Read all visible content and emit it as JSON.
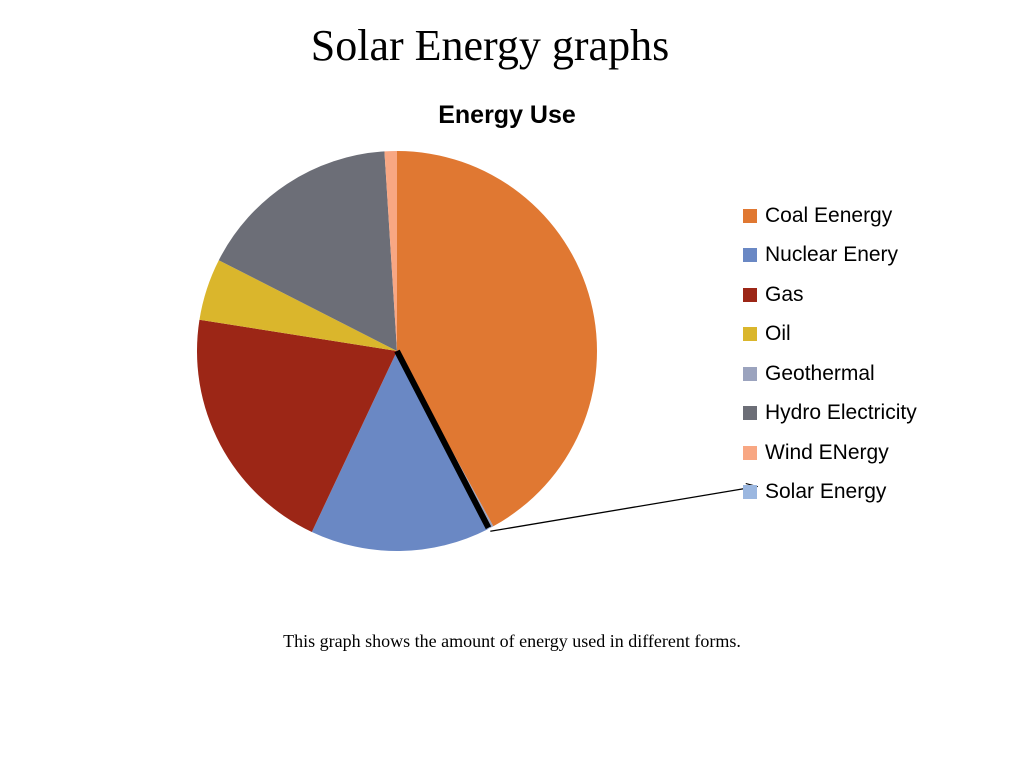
{
  "slide": {
    "title": "Solar Energy graphs",
    "caption": "This graph shows the amount of energy used in different forms."
  },
  "chart_data": {
    "type": "pie",
    "title": "Energy Use",
    "legend_position": "right",
    "slices": [
      {
        "name": "Coal Eenergy",
        "value": 42.0,
        "color": "#E07832"
      },
      {
        "name": "Nuclear Enery",
        "value": 14.5,
        "color": "#6A88C4"
      },
      {
        "name": "Gas",
        "value": 20.5,
        "color": "#9C2616"
      },
      {
        "name": "Oil",
        "value": 5.0,
        "color": "#DAB62C"
      },
      {
        "name": "Geothermal",
        "value": 0.3,
        "color": "#9BA3BE"
      },
      {
        "name": "Hydro Electricity",
        "value": 16.5,
        "color": "#6C6E77"
      },
      {
        "name": "Wind ENergy",
        "value": 1.0,
        "color": "#F8A783"
      },
      {
        "name": "Solar Energy",
        "value": 0.2,
        "color": "#9BB7E0"
      }
    ],
    "pie_order": [
      "Coal Eenergy",
      "Geothermal",
      "Solar Energy",
      "Nuclear Enery",
      "Gas",
      "Oil",
      "Hydro Electricity",
      "Wind ENergy"
    ],
    "highlight": "Solar Energy"
  }
}
